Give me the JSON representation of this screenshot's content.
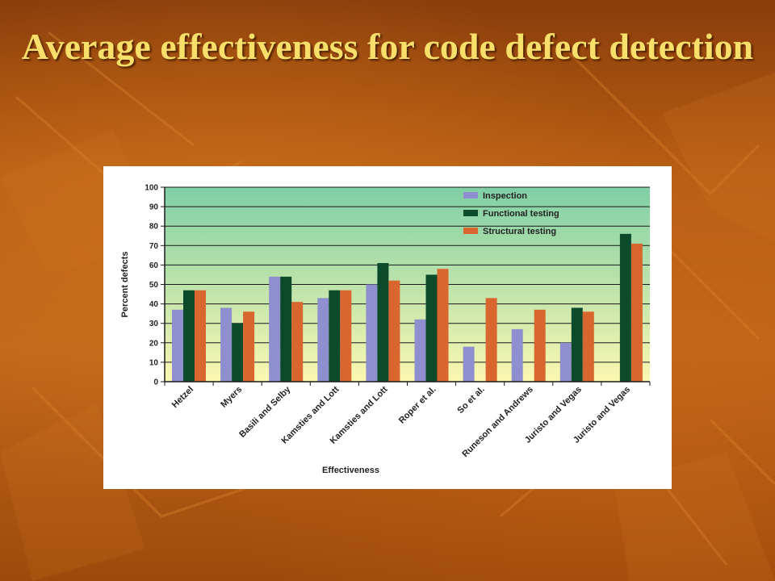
{
  "slide": {
    "title": "Average effectiveness for code defect detection"
  },
  "colors": {
    "inspection": "#8f8fcf",
    "functional": "#0b4a2a",
    "structural": "#d8662e",
    "plot_top": "#7fcfa6",
    "plot_bottom": "#fbf7b0"
  },
  "chart_data": {
    "type": "bar",
    "title": "",
    "xlabel": "Effectiveness",
    "ylabel": "Percent defects",
    "ylim": [
      0,
      100
    ],
    "yticks": [
      0,
      10,
      20,
      30,
      40,
      50,
      60,
      70,
      80,
      90,
      100
    ],
    "grid": true,
    "legend_position": "top-right",
    "categories": [
      "Hetzel",
      "Myers",
      "Basili and Selby",
      "Kamsties and Lott",
      "Kamsties and Lott",
      "Roper et al.",
      "So et al.",
      "Runeson and Andrews",
      "Juristo and Vegas",
      "Juristo and Vegas"
    ],
    "series": [
      {
        "name": "Inspection",
        "color_key": "inspection",
        "values": [
          37,
          38,
          54,
          43,
          50,
          32,
          18,
          27,
          20,
          null
        ]
      },
      {
        "name": "Functional testing",
        "color_key": "functional",
        "values": [
          47,
          30,
          54,
          47,
          61,
          55,
          null,
          null,
          38,
          76
        ]
      },
      {
        "name": "Structural testing",
        "color_key": "structural",
        "values": [
          47,
          36,
          41,
          47,
          52,
          58,
          43,
          37,
          36,
          71
        ]
      }
    ]
  }
}
